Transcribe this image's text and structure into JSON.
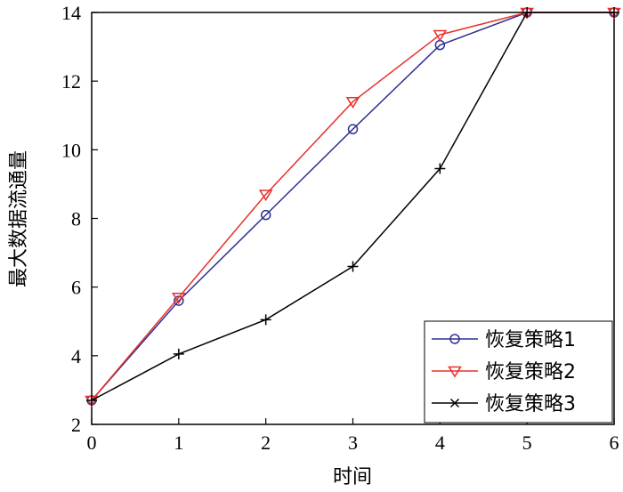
{
  "chart_data": {
    "type": "line",
    "xlabel": "时间",
    "ylabel": "最大数据流通量",
    "xlim": [
      0,
      6
    ],
    "ylim": [
      2,
      14
    ],
    "xticks": [
      0,
      1,
      2,
      3,
      4,
      5,
      6
    ],
    "yticks": [
      2,
      4,
      6,
      8,
      10,
      12,
      14
    ],
    "legend_position": "bottom-right",
    "grid": false,
    "series": [
      {
        "name": "恢复策略1",
        "color": "#2e3192",
        "marker": "circle",
        "x": [
          0,
          1,
          2,
          3,
          4,
          5,
          6
        ],
        "y": [
          2.7,
          5.6,
          8.1,
          10.6,
          13.05,
          14,
          14
        ]
      },
      {
        "name": "恢复策略2",
        "color": "#e8312a",
        "marker": "triangle-down",
        "x": [
          0,
          1,
          2,
          3,
          4,
          5,
          6
        ],
        "y": [
          2.7,
          5.7,
          8.7,
          11.4,
          13.35,
          14,
          14
        ]
      },
      {
        "name": "恢复策略3",
        "color": "#000000",
        "marker": "plus",
        "legend_marker": "x",
        "x": [
          0,
          1,
          2,
          3,
          4,
          5,
          6
        ],
        "y": [
          2.7,
          4.05,
          5.05,
          6.6,
          9.45,
          14,
          14
        ]
      }
    ]
  }
}
